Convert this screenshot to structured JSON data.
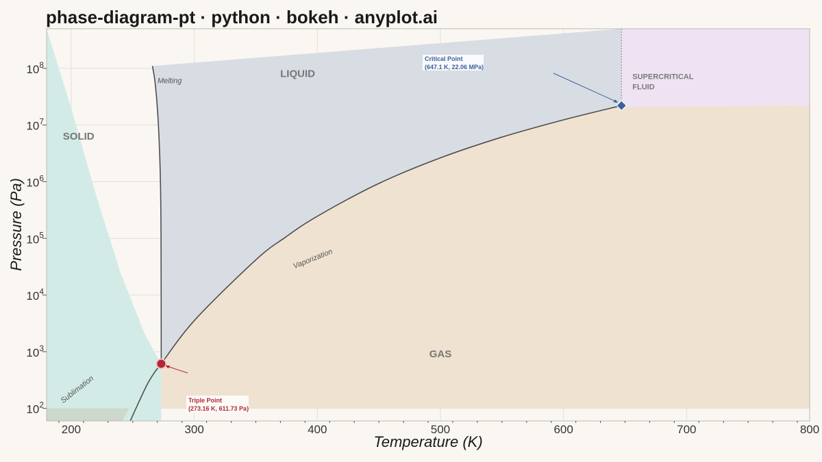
{
  "title": "phase-diagram-pt · python · bokeh · anyplot.ai",
  "chart_data": {
    "type": "line",
    "xlabel": "Temperature (K)",
    "ylabel": "Pressure (Pa)",
    "xlim": [
      180,
      800
    ],
    "ylim": [
      60,
      500000000
    ],
    "y_scale": "log",
    "x_ticks": [
      200,
      300,
      400,
      500,
      600,
      700,
      800
    ],
    "y_ticks": [
      {
        "value": 100,
        "base": "10",
        "exp": "2"
      },
      {
        "value": 1000,
        "base": "10",
        "exp": "3"
      },
      {
        "value": 10000,
        "base": "10",
        "exp": "4"
      },
      {
        "value": 100000,
        "base": "10",
        "exp": "5"
      },
      {
        "value": 1000000,
        "base": "10",
        "exp": "6"
      },
      {
        "value": 10000000,
        "base": "10",
        "exp": "7"
      },
      {
        "value": 100000000,
        "base": "10",
        "exp": "8"
      }
    ],
    "grid": true,
    "curves": {
      "sublimation": {
        "name": "Sublimation",
        "T": [
          180,
          200,
          220,
          240,
          260,
          273.16
        ],
        "P": [
          500000000,
          20000000,
          600000,
          25000,
          2000,
          611.73
        ]
      },
      "melting": {
        "name": "Melting",
        "T": [
          273.16,
          273.0,
          272.5,
          271.5,
          270,
          268,
          266
        ],
        "P": [
          611.73,
          100000,
          1000000,
          5000000,
          20000000,
          60000000,
          110000000
        ]
      },
      "vaporization": {
        "name": "Vaporization",
        "T": [
          273.16,
          300,
          350,
          373.15,
          400,
          450,
          500,
          550,
          600,
          647.1
        ],
        "P": [
          611.73,
          3537,
          41682,
          101325,
          245770,
          932000,
          2639000,
          6117000,
          12345000,
          22060000
        ]
      }
    },
    "regions": [
      {
        "label": "SOLID",
        "T": 206,
        "P": 5500000
      },
      {
        "label": "LIQUID",
        "T": 384,
        "P": 70000000
      },
      {
        "label": "GAS",
        "T": 500,
        "P": 800
      },
      {
        "label": "SUPERCRITICAL FLUID",
        "lines": [
          "SUPERCRITICAL",
          "FLUID"
        ],
        "T": 656,
        "P": 65000000
      }
    ],
    "critical_point": {
      "T": 647.1,
      "P": 22060000,
      "label_line1": "Critical Point",
      "label_line2": "(647.1 K, 22.06 MPa)",
      "color": "#3b5fa0"
    },
    "triple_point": {
      "T": 273.16,
      "P": 611.73,
      "label_line1": "Triple Point",
      "label_line2": "(273.16 K, 611.73 Pa)",
      "color": "#b22732"
    },
    "colors": {
      "solid": "#d3ebe7",
      "liquid": "#d8dde3",
      "gas": "#efe2d0",
      "supercritical": "#efe2f2",
      "overlap": "#ccd9cc",
      "curve": "#4d4d4d"
    }
  }
}
